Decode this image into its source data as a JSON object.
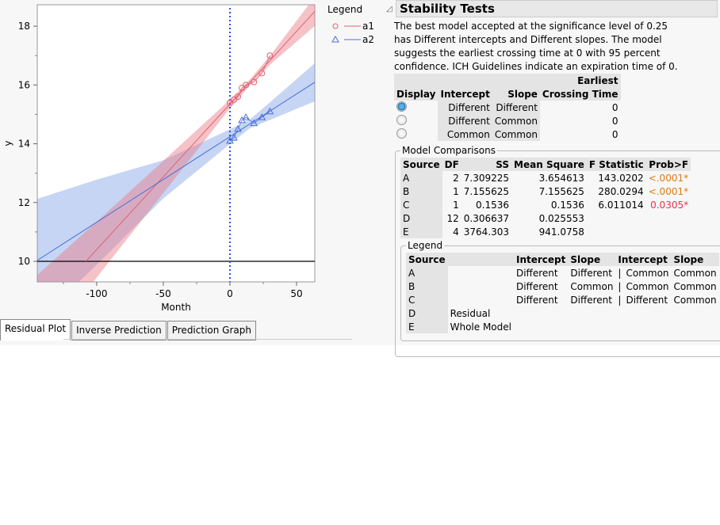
{
  "chart_data": {
    "type": "line",
    "xlabel": "Month",
    "ylabel": "y",
    "xlim": [
      -144.6,
      63.7
    ],
    "ylim": [
      9.3,
      18.73
    ],
    "xticks": [
      -100,
      -50,
      0,
      50
    ],
    "yticks": [
      10,
      12,
      14,
      16,
      18
    ],
    "reference_lines": {
      "horizontal_y": 10,
      "vertical_x": 0
    },
    "legend": {
      "title": "Legend",
      "position": "right"
    },
    "series": [
      {
        "name": "a1",
        "color": "#e06070",
        "marker": "circle",
        "x": [
          0,
          3,
          6,
          9,
          12,
          18,
          24,
          30
        ],
        "y": [
          15.4,
          15.5,
          15.6,
          15.9,
          16.0,
          16.1,
          16.4,
          17.0
        ],
        "fit": {
          "intercept": 15.35,
          "slope": 0.0495
        },
        "band": {
          "x": [
            -145,
            -100,
            -50,
            0,
            15,
            30,
            64
          ],
          "lower": [
            6.82,
            9.45,
            12.32,
            15.2,
            15.99,
            16.69,
            18.02
          ],
          "upper": [
            9.52,
            11.35,
            13.42,
            15.5,
            16.19,
            16.99,
            19.02
          ]
        }
      },
      {
        "name": "a2",
        "color": "#4a70d8",
        "marker": "triangle",
        "x": [
          0,
          3,
          6,
          9,
          12,
          18,
          24,
          30
        ],
        "y": [
          14.1,
          14.2,
          14.5,
          14.8,
          14.9,
          14.7,
          14.9,
          15.1
        ],
        "fit": {
          "intercept": 14.24,
          "slope": 0.0291
        },
        "band": {
          "x": [
            -145,
            -100,
            -50,
            0,
            15,
            30,
            64
          ],
          "lower": [
            7.92,
            9.88,
            12.14,
            13.99,
            14.53,
            14.81,
            15.45
          ],
          "upper": [
            12.12,
            12.78,
            13.44,
            14.49,
            14.83,
            15.41,
            16.75
          ]
        }
      }
    ]
  },
  "tabs": [
    "Residual Plot",
    "Inverse Prediction",
    "Prediction Graph"
  ],
  "stability": {
    "title": "Stability Tests",
    "summary": "The best model accepted at the significance level of 0.25 has Different intercepts and Different slopes. The model suggests the earliest crossing time at 0 with 95 percent confidence. ICH Guidelines indicate an expiration time of 0.",
    "headers": {
      "display": "Display",
      "intercept": "Intercept",
      "slope": "Slope",
      "earliest": "Earliest",
      "crossing": "Crossing Time"
    },
    "rows": [
      {
        "selected": true,
        "intercept": "Different",
        "slope": "Different",
        "time": "0"
      },
      {
        "selected": false,
        "intercept": "Different",
        "slope": "Common",
        "time": "0"
      },
      {
        "selected": false,
        "intercept": "Common",
        "slope": "Common",
        "time": "0"
      }
    ]
  },
  "model_comparisons": {
    "title": "Model Comparisons",
    "headers": [
      "Source",
      "DF",
      "SS",
      "Mean Square",
      "F Statistic",
      "Prob>F"
    ],
    "rows": [
      [
        "A",
        "2",
        "7.309225",
        "3.654613",
        "143.0202",
        "<.0001*"
      ],
      [
        "B",
        "1",
        "7.155625",
        "7.155625",
        "280.0294",
        "<.0001*"
      ],
      [
        "C",
        "1",
        "0.1536",
        "0.1536",
        "6.011014",
        "0.0305*"
      ],
      [
        "D",
        "12",
        "0.306637",
        "0.025553",
        "",
        ""
      ],
      [
        "E",
        "4",
        "3764.303",
        "941.0758",
        "",
        ""
      ]
    ],
    "prob_colors": [
      "#e07a10",
      "#e07a10",
      "#e8304a",
      "",
      ""
    ]
  },
  "legend_table": {
    "title": "Legend",
    "headers": [
      "Source",
      "",
      "Intercept",
      "Slope",
      "Intercept",
      "Slope"
    ],
    "rows": [
      [
        "A",
        "",
        "Different",
        "Different",
        "|",
        "Common",
        "Common"
      ],
      [
        "B",
        "",
        "Different",
        "Common",
        "|",
        "Common",
        "Common"
      ],
      [
        "C",
        "",
        "Different",
        "Different",
        "|",
        "Different",
        "Common"
      ],
      [
        "D",
        "Residual",
        "",
        "",
        "",
        "",
        ""
      ],
      [
        "E",
        "Whole Model",
        "",
        "",
        "",
        "",
        ""
      ]
    ]
  }
}
